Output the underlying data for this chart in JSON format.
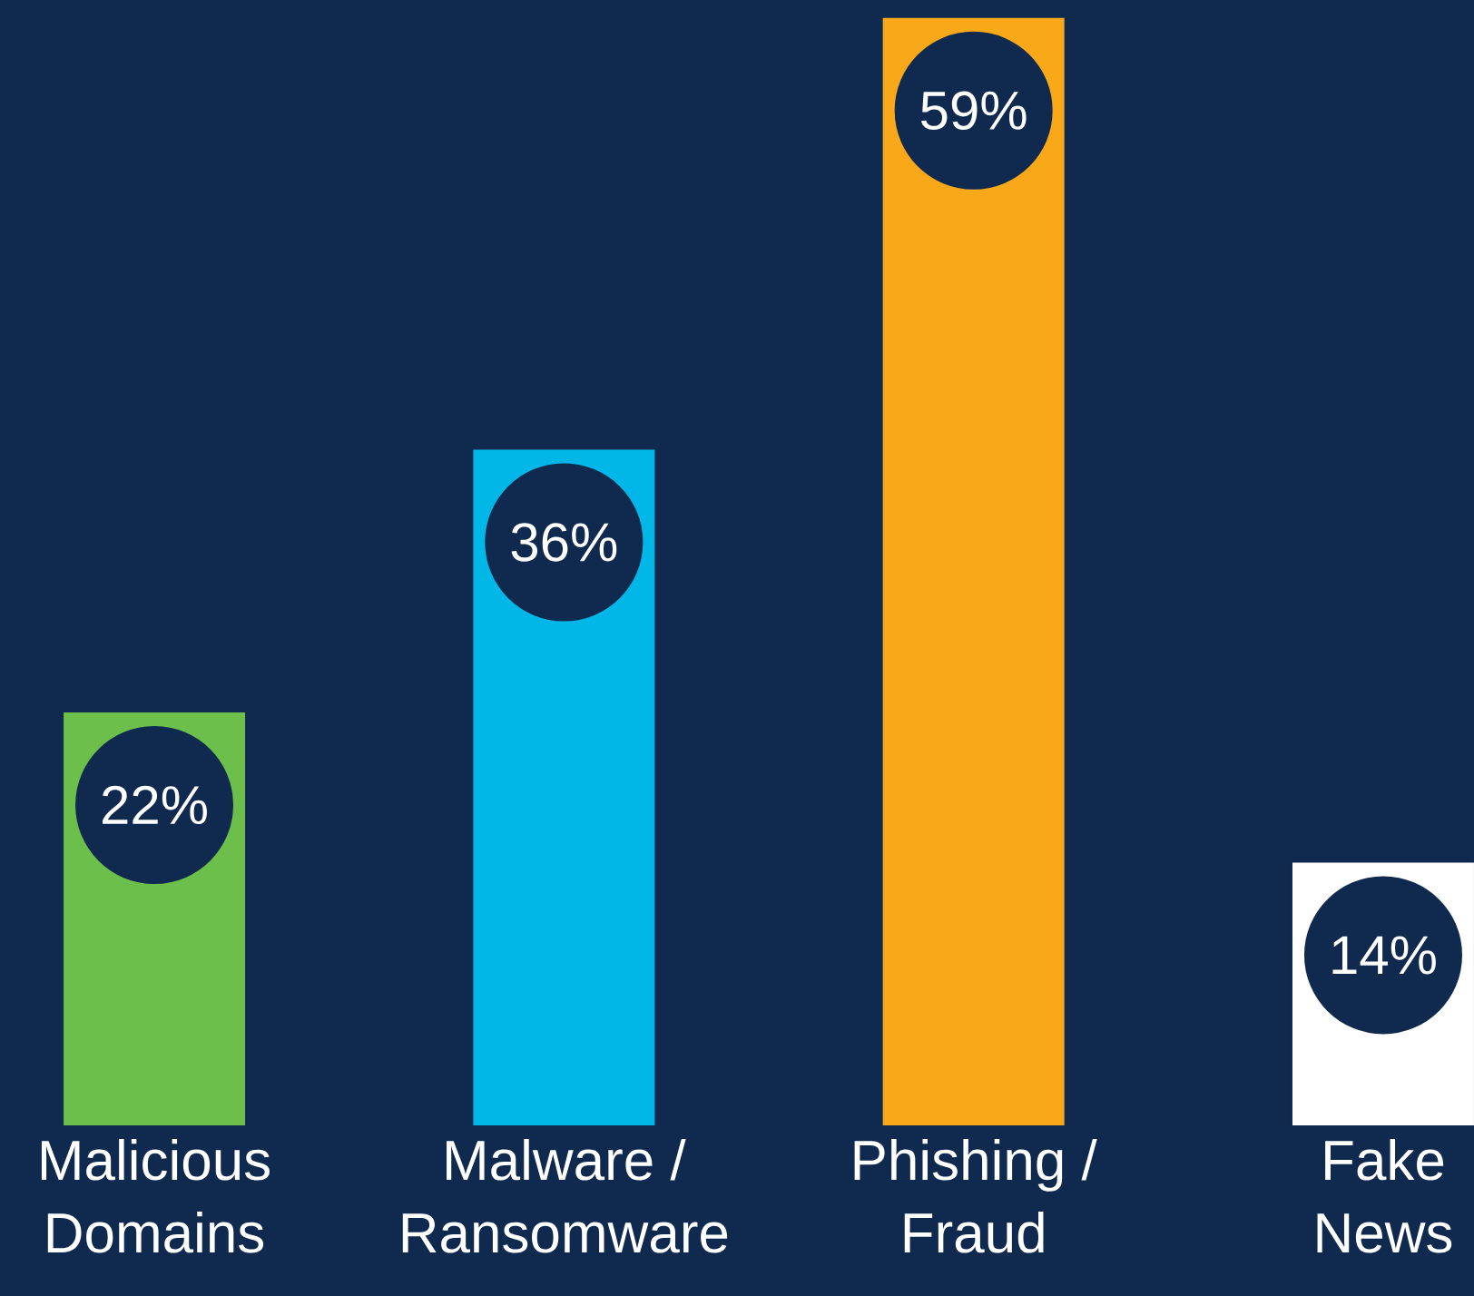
{
  "chart_data": {
    "type": "bar",
    "categories": [
      "Malicious Domains",
      "Malware / Ransomware",
      "Phishing / Fraud",
      "Fake News"
    ],
    "values": [
      22,
      36,
      59,
      14
    ],
    "colors": [
      "#6cbf4b",
      "#00b7e8",
      "#f9a81a",
      "#ffffff"
    ],
    "value_labels": [
      "22%",
      "36%",
      "59%",
      "14%"
    ]
  }
}
